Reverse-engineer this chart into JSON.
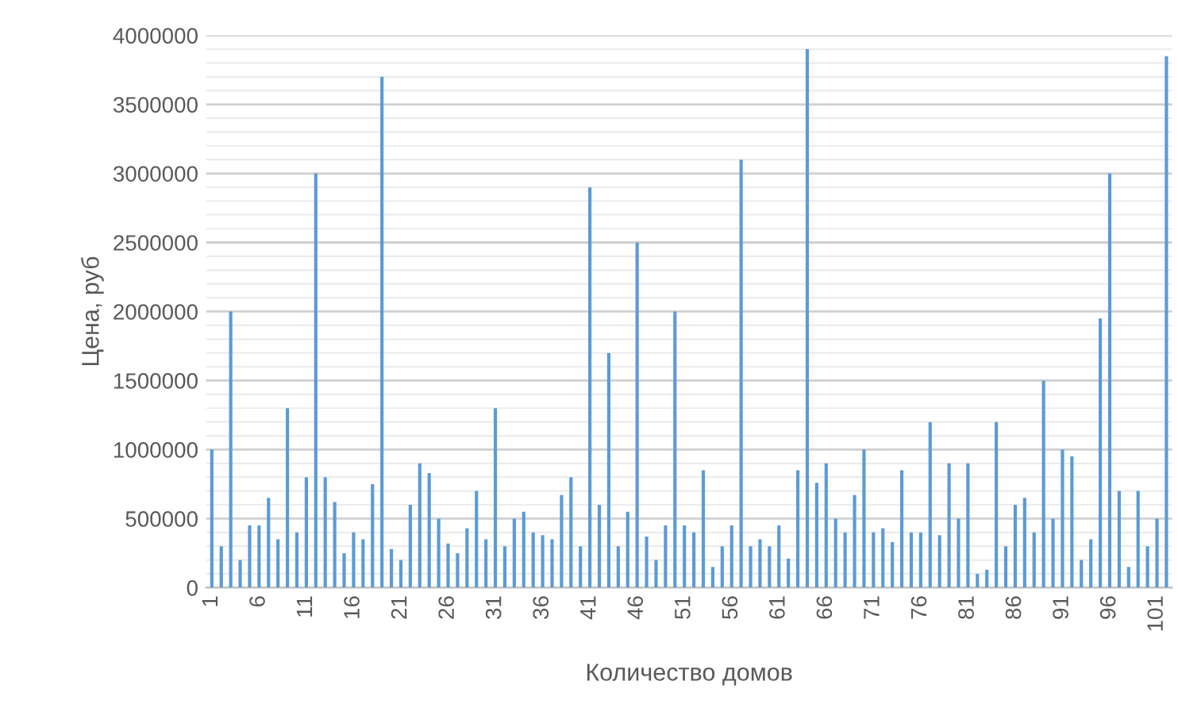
{
  "chart_data": {
    "type": "bar",
    "xlabel": "Количество домов",
    "ylabel": "Цена, руб",
    "categories": [
      "1",
      null,
      null,
      null,
      null,
      "6",
      null,
      null,
      null,
      null,
      "11",
      null,
      null,
      null,
      null,
      "16",
      null,
      null,
      null,
      null,
      "21",
      null,
      null,
      null,
      null,
      "26",
      null,
      null,
      null,
      null,
      "31",
      null,
      null,
      null,
      null,
      "36",
      null,
      null,
      null,
      null,
      "41",
      null,
      null,
      null,
      null,
      "46",
      null,
      null,
      null,
      null,
      "51",
      null,
      null,
      null,
      null,
      "56",
      null,
      null,
      null,
      null,
      "61",
      null,
      null,
      null,
      null,
      "66",
      null,
      null,
      null,
      null,
      "71",
      null,
      null,
      null,
      null,
      "76",
      null,
      null,
      null,
      null,
      "81",
      null,
      null,
      null,
      null,
      "86",
      null,
      null,
      null,
      null,
      "91",
      null,
      null,
      null,
      null,
      "96",
      null,
      null,
      null,
      null,
      "101",
      null
    ],
    "values": [
      1000000,
      300000,
      2000000,
      200000,
      450000,
      450000,
      650000,
      350000,
      1300000,
      400000,
      800000,
      3000000,
      800000,
      620000,
      250000,
      400000,
      350000,
      750000,
      3700000,
      280000,
      200000,
      600000,
      900000,
      830000,
      500000,
      320000,
      250000,
      430000,
      700000,
      350000,
      1300000,
      300000,
      500000,
      550000,
      400000,
      380000,
      350000,
      670000,
      800000,
      300000,
      2900000,
      600000,
      1700000,
      300000,
      550000,
      2500000,
      370000,
      200000,
      450000,
      2000000,
      450000,
      400000,
      850000,
      150000,
      300000,
      450000,
      3100000,
      300000,
      350000,
      300000,
      450000,
      210000,
      850000,
      3900000,
      760000,
      900000,
      500000,
      400000,
      670000,
      1000000,
      400000,
      430000,
      330000,
      850000,
      400000,
      400000,
      1200000,
      380000,
      900000,
      500000,
      900000,
      100000,
      130000,
      1200000,
      300000,
      600000,
      650000,
      400000,
      1500000,
      500000,
      1000000,
      950000,
      200000,
      350000,
      1950000,
      3000000,
      700000,
      150000,
      700000,
      300000,
      500000,
      3850000
    ],
    "color": "#5b9bd5",
    "ylim": [
      0,
      4000000
    ],
    "yticks": [
      0,
      {
        "value": 100000,
        "label": null
      },
      {
        "value": 200000,
        "label": null
      },
      {
        "value": 300000,
        "label": null
      },
      {
        "value": 400000,
        "label": null
      },
      500000,
      {
        "value": 600000,
        "label": null
      },
      {
        "value": 700000,
        "label": null
      },
      {
        "value": 800000,
        "label": null
      },
      {
        "value": 900000,
        "label": null
      },
      1000000,
      {
        "value": 1100000,
        "label": null
      },
      {
        "value": 1200000,
        "label": null
      },
      {
        "value": 1300000,
        "label": null
      },
      {
        "value": 1400000,
        "label": null
      },
      1500000,
      {
        "value": 1600000,
        "label": null
      },
      {
        "value": 1700000,
        "label": null
      },
      {
        "value": 1800000,
        "label": null
      },
      {
        "value": 1900000,
        "label": null
      },
      2000000,
      {
        "value": 2100000,
        "label": null
      },
      {
        "value": 2200000,
        "label": null
      },
      {
        "value": 2300000,
        "label": null
      },
      {
        "value": 2400000,
        "label": null
      },
      2500000,
      {
        "value": 2600000,
        "label": null
      },
      {
        "value": 2700000,
        "label": null
      },
      {
        "value": 2800000,
        "label": null
      },
      {
        "value": 2900000,
        "label": null
      },
      3000000,
      {
        "value": 3100000,
        "label": null
      },
      {
        "value": 3200000,
        "label": null
      },
      {
        "value": 3300000,
        "label": null
      },
      {
        "value": 3400000,
        "label": null
      },
      3500000,
      {
        "value": 3600000,
        "label": null
      },
      {
        "value": 3700000,
        "label": null
      },
      {
        "value": 3800000,
        "label": null
      },
      {
        "value": 3900000,
        "label": null
      },
      4000000
    ],
    "grid": "y"
  }
}
